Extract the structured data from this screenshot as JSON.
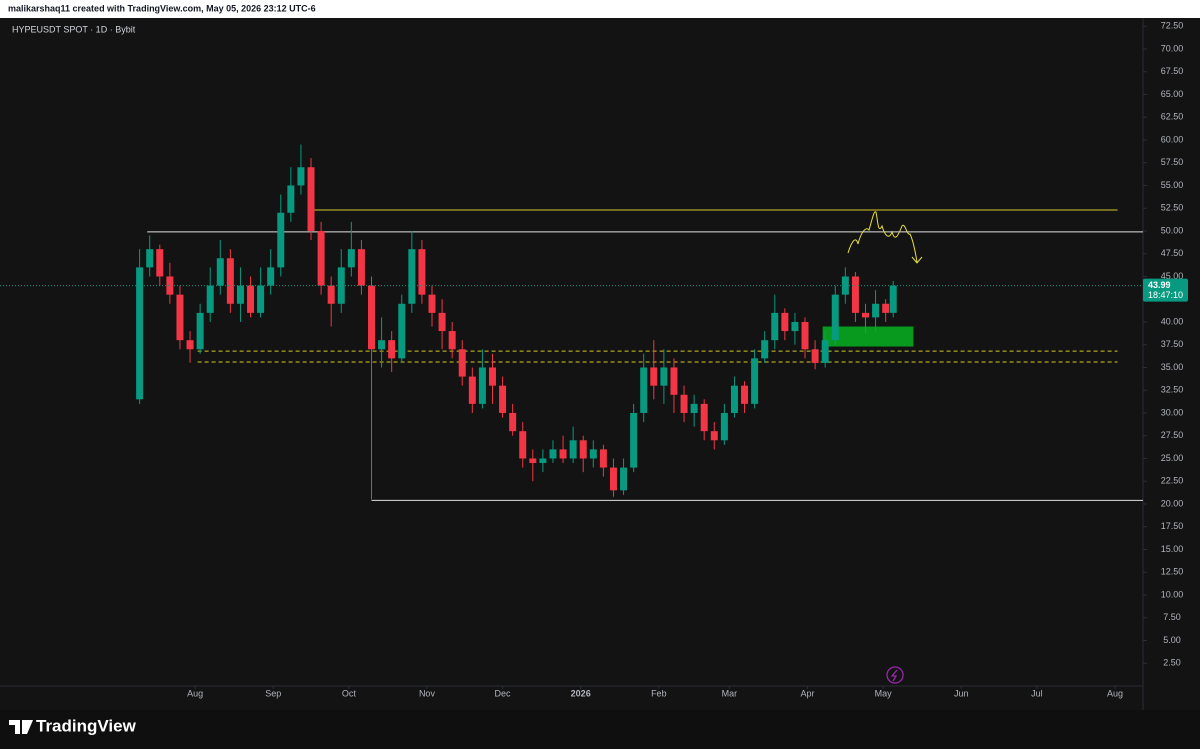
{
  "chart_data": {
    "type": "candlestick",
    "header": "malikarshaq11 created with TradingView.com, May 05, 2026 23:12 UTC-6",
    "title": "HYPEUSDT SPOT · 1D · Bybit",
    "brand": "TradingView",
    "up_color": "#089981",
    "down_color": "#f23645",
    "current_price": 43.99,
    "countdown": "18:47:10",
    "ylim": [
      0,
      73.4
    ],
    "yticks": [
      {
        "value": 2.5,
        "label": "2.50"
      },
      {
        "value": 5,
        "label": "5.00"
      },
      {
        "value": 7.5,
        "label": "7.50"
      },
      {
        "value": 10,
        "label": "10.00"
      },
      {
        "value": 12.5,
        "label": "12.50"
      },
      {
        "value": 15,
        "label": "15.00"
      },
      {
        "value": 17.5,
        "label": "17.50"
      },
      {
        "value": 20,
        "label": "20.00"
      },
      {
        "value": 22.5,
        "label": "22.50"
      },
      {
        "value": 25,
        "label": "25.00"
      },
      {
        "value": 27.5,
        "label": "27.50"
      },
      {
        "value": 30,
        "label": "30.00"
      },
      {
        "value": 32.5,
        "label": "32.50"
      },
      {
        "value": 35,
        "label": "35.00"
      },
      {
        "value": 37.5,
        "label": "37.50"
      },
      {
        "value": 40,
        "label": "40.00"
      },
      {
        "value": 45,
        "label": "45.00"
      },
      {
        "value": 47.5,
        "label": "47.50"
      },
      {
        "value": 50,
        "label": "50.00"
      },
      {
        "value": 52.5,
        "label": "52.50"
      },
      {
        "value": 55,
        "label": "55.00"
      },
      {
        "value": 57.5,
        "label": "57.50"
      },
      {
        "value": 60,
        "label": "60.00"
      },
      {
        "value": 62.5,
        "label": "62.50"
      },
      {
        "value": 65,
        "label": "65.00"
      },
      {
        "value": 67.5,
        "label": "67.50"
      },
      {
        "value": 70,
        "label": "70.00"
      },
      {
        "value": 72.5,
        "label": "72.50"
      }
    ],
    "xlim": [
      -46.4,
      407.1
    ],
    "xticks": [
      {
        "value": 31,
        "label": "Aug"
      },
      {
        "value": 62,
        "label": "Sep"
      },
      {
        "value": 92,
        "label": "Oct"
      },
      {
        "value": 123,
        "label": "Nov"
      },
      {
        "value": 153,
        "label": "Dec"
      },
      {
        "value": 184,
        "label": "2026"
      },
      {
        "value": 215,
        "label": "Feb"
      },
      {
        "value": 243,
        "label": "Mar"
      },
      {
        "value": 274,
        "label": "Apr"
      },
      {
        "value": 304,
        "label": "May"
      },
      {
        "value": 335,
        "label": "Jun"
      },
      {
        "value": 365,
        "label": "Jul"
      },
      {
        "value": 396,
        "label": "Aug"
      }
    ],
    "candles": [
      {
        "x": 9,
        "open": 31.5,
        "high": 48,
        "low": 31,
        "close": 46
      },
      {
        "x": 13,
        "open": 46,
        "high": 49.5,
        "low": 45,
        "close": 48
      },
      {
        "x": 17,
        "open": 48,
        "high": 48.5,
        "low": 44,
        "close": 45
      },
      {
        "x": 21,
        "open": 45,
        "high": 46.5,
        "low": 42,
        "close": 43
      },
      {
        "x": 25,
        "open": 43,
        "high": 44,
        "low": 37,
        "close": 38
      },
      {
        "x": 29,
        "open": 38,
        "high": 39,
        "low": 35.5,
        "close": 37
      },
      {
        "x": 33,
        "open": 37,
        "high": 42,
        "low": 36.5,
        "close": 41
      },
      {
        "x": 37,
        "open": 41,
        "high": 46,
        "low": 40,
        "close": 44
      },
      {
        "x": 41,
        "open": 44,
        "high": 49,
        "low": 43,
        "close": 47
      },
      {
        "x": 45,
        "open": 47,
        "high": 48,
        "low": 41,
        "close": 42
      },
      {
        "x": 49,
        "open": 42,
        "high": 46,
        "low": 40,
        "close": 44
      },
      {
        "x": 53,
        "open": 44,
        "high": 45,
        "low": 40.5,
        "close": 41
      },
      {
        "x": 57,
        "open": 41,
        "high": 46,
        "low": 40.5,
        "close": 44
      },
      {
        "x": 61,
        "open": 44,
        "high": 48,
        "low": 43,
        "close": 46
      },
      {
        "x": 65,
        "open": 46,
        "high": 54,
        "low": 45,
        "close": 52
      },
      {
        "x": 69,
        "open": 52,
        "high": 57,
        "low": 51,
        "close": 55
      },
      {
        "x": 73,
        "open": 55,
        "high": 59.5,
        "low": 54,
        "close": 57
      },
      {
        "x": 77,
        "open": 57,
        "high": 58,
        "low": 49,
        "close": 50
      },
      {
        "x": 81,
        "open": 50,
        "high": 51,
        "low": 43,
        "close": 44
      },
      {
        "x": 85,
        "open": 44,
        "high": 45,
        "low": 39.5,
        "close": 42
      },
      {
        "x": 89,
        "open": 42,
        "high": 48,
        "low": 41,
        "close": 46
      },
      {
        "x": 93,
        "open": 46,
        "high": 51,
        "low": 45,
        "close": 48
      },
      {
        "x": 97,
        "open": 48,
        "high": 49,
        "low": 43,
        "close": 44
      },
      {
        "x": 101,
        "open": 44,
        "high": 45,
        "low": 20.5,
        "close": 37
      },
      {
        "x": 105,
        "open": 37,
        "high": 40.5,
        "low": 35,
        "close": 38
      },
      {
        "x": 109,
        "open": 38,
        "high": 39,
        "low": 34.5,
        "close": 36
      },
      {
        "x": 113,
        "open": 36,
        "high": 43,
        "low": 35.5,
        "close": 42
      },
      {
        "x": 117,
        "open": 42,
        "high": 50,
        "low": 41,
        "close": 48
      },
      {
        "x": 121,
        "open": 48,
        "high": 49,
        "low": 42,
        "close": 43
      },
      {
        "x": 125,
        "open": 43,
        "high": 44,
        "low": 39.5,
        "close": 41
      },
      {
        "x": 129,
        "open": 41,
        "high": 42.5,
        "low": 37,
        "close": 39
      },
      {
        "x": 133,
        "open": 39,
        "high": 40,
        "low": 36,
        "close": 37
      },
      {
        "x": 137,
        "open": 37,
        "high": 38,
        "low": 33,
        "close": 34
      },
      {
        "x": 141,
        "open": 34,
        "high": 35,
        "low": 30,
        "close": 31
      },
      {
        "x": 145,
        "open": 31,
        "high": 37,
        "low": 30.5,
        "close": 35
      },
      {
        "x": 149,
        "open": 35,
        "high": 36.5,
        "low": 31,
        "close": 33
      },
      {
        "x": 153,
        "open": 33,
        "high": 34,
        "low": 29.5,
        "close": 30
      },
      {
        "x": 157,
        "open": 30,
        "high": 31,
        "low": 27.5,
        "close": 28
      },
      {
        "x": 161,
        "open": 28,
        "high": 29,
        "low": 24,
        "close": 25
      },
      {
        "x": 165,
        "open": 25,
        "high": 26,
        "low": 22.5,
        "close": 24.5
      },
      {
        "x": 169,
        "open": 24.5,
        "high": 26,
        "low": 23.5,
        "close": 25
      },
      {
        "x": 173,
        "open": 25,
        "high": 27,
        "low": 24.5,
        "close": 26
      },
      {
        "x": 177,
        "open": 26,
        "high": 27.5,
        "low": 24.5,
        "close": 25
      },
      {
        "x": 181,
        "open": 25,
        "high": 28.5,
        "low": 24.5,
        "close": 27
      },
      {
        "x": 185,
        "open": 27,
        "high": 27.5,
        "low": 23.5,
        "close": 25
      },
      {
        "x": 189,
        "open": 25,
        "high": 27,
        "low": 24,
        "close": 26
      },
      {
        "x": 193,
        "open": 26,
        "high": 26.5,
        "low": 23,
        "close": 24
      },
      {
        "x": 197,
        "open": 24,
        "high": 25,
        "low": 20.8,
        "close": 21.5
      },
      {
        "x": 201,
        "open": 21.5,
        "high": 25,
        "low": 21,
        "close": 24
      },
      {
        "x": 205,
        "open": 24,
        "high": 31,
        "low": 23.5,
        "close": 30
      },
      {
        "x": 209,
        "open": 30,
        "high": 36.5,
        "low": 29,
        "close": 35
      },
      {
        "x": 213,
        "open": 35,
        "high": 38,
        "low": 31.5,
        "close": 33
      },
      {
        "x": 217,
        "open": 33,
        "high": 37,
        "low": 31,
        "close": 35
      },
      {
        "x": 221,
        "open": 35,
        "high": 36,
        "low": 30,
        "close": 32
      },
      {
        "x": 225,
        "open": 32,
        "high": 33,
        "low": 29,
        "close": 30
      },
      {
        "x": 229,
        "open": 30,
        "high": 32,
        "low": 28.5,
        "close": 31
      },
      {
        "x": 233,
        "open": 31,
        "high": 31.5,
        "low": 27,
        "close": 28
      },
      {
        "x": 237,
        "open": 28,
        "high": 29,
        "low": 26,
        "close": 27
      },
      {
        "x": 241,
        "open": 27,
        "high": 31,
        "low": 26.5,
        "close": 30
      },
      {
        "x": 245,
        "open": 30,
        "high": 34,
        "low": 29.5,
        "close": 33
      },
      {
        "x": 249,
        "open": 33,
        "high": 33.5,
        "low": 30,
        "close": 31
      },
      {
        "x": 253,
        "open": 31,
        "high": 37,
        "low": 30.5,
        "close": 36
      },
      {
        "x": 257,
        "open": 36,
        "high": 39,
        "low": 35.5,
        "close": 38
      },
      {
        "x": 261,
        "open": 38,
        "high": 43,
        "low": 37,
        "close": 41
      },
      {
        "x": 265,
        "open": 41,
        "high": 41.5,
        "low": 38,
        "close": 39
      },
      {
        "x": 269,
        "open": 39,
        "high": 41,
        "low": 37.5,
        "close": 40
      },
      {
        "x": 273,
        "open": 40,
        "high": 40.5,
        "low": 36,
        "close": 37
      },
      {
        "x": 277,
        "open": 37,
        "high": 38,
        "low": 34.8,
        "close": 35.5
      },
      {
        "x": 281,
        "open": 35.5,
        "high": 39,
        "low": 35,
        "close": 38
      },
      {
        "x": 285,
        "open": 38,
        "high": 44,
        "low": 37.5,
        "close": 43
      },
      {
        "x": 289,
        "open": 43,
        "high": 46,
        "low": 42,
        "close": 45
      },
      {
        "x": 293,
        "open": 45,
        "high": 45.5,
        "low": 40,
        "close": 41
      },
      {
        "x": 297,
        "open": 41,
        "high": 42,
        "low": 38.8,
        "close": 40.5
      },
      {
        "x": 301,
        "open": 40.5,
        "high": 43.5,
        "low": 39,
        "close": 42
      },
      {
        "x": 305,
        "open": 42,
        "high": 42.5,
        "low": 40,
        "close": 41
      },
      {
        "x": 308,
        "open": 41,
        "high": 44.5,
        "low": 40.5,
        "close": 43.99
      }
    ],
    "levels": [
      {
        "price": 52.3,
        "from": 77,
        "to": 397,
        "color": "#d4c82a",
        "style": "solid"
      },
      {
        "price": 49.9,
        "from": 12,
        "to": 407.1,
        "color": "#e0e0e0",
        "style": "solid"
      },
      {
        "price": 20.4,
        "from": 101,
        "to": 407.1,
        "color": "#e0e0e0",
        "style": "solid"
      },
      {
        "price": 36.8,
        "from": 32,
        "to": 397,
        "color": "#d4c82a",
        "style": "dashed"
      },
      {
        "price": 35.6,
        "from": 32,
        "to": 397,
        "color": "#d4c82a",
        "style": "dashed"
      }
    ],
    "zone": {
      "from": 280,
      "to": 316,
      "top": 39.5,
      "bottom": 37.3,
      "color": "#089a1e"
    }
  }
}
